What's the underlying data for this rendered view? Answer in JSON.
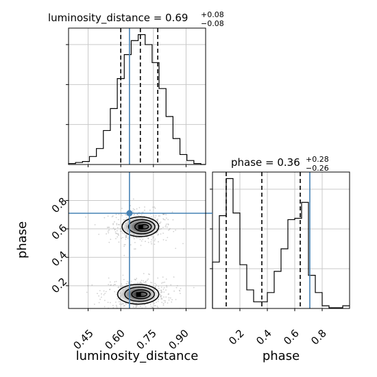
{
  "chart_data": {
    "type": "corner",
    "parameters": [
      "luminosity_distance",
      "phase"
    ],
    "truth_color": "#4682b4",
    "truths": {
      "luminosity_distance": 0.64,
      "phase": 0.71
    },
    "panels": [
      {
        "id": "hist_luminosity_distance",
        "type": "histogram-step",
        "xlim": [
          0.36,
          0.99
        ],
        "title": {
          "text": "luminosity_distance = 0.69",
          "plus": "+0.08",
          "minus": "−0.08"
        },
        "quantiles": [
          0.6,
          0.69,
          0.77
        ],
        "bin_edges": [
          0.36,
          0.392,
          0.424,
          0.456,
          0.488,
          0.52,
          0.552,
          0.584,
          0.616,
          0.648,
          0.68,
          0.712,
          0.744,
          0.776,
          0.808,
          0.84,
          0.872,
          0.904,
          0.936,
          0.968,
          0.99
        ],
        "counts": [
          0.5,
          1.0,
          1.5,
          4.0,
          8.0,
          17.0,
          28.0,
          43.0,
          55.0,
          62.0,
          65.0,
          60.0,
          51.0,
          38.0,
          24.0,
          13.0,
          5.0,
          2.0,
          0.5,
          0.0
        ]
      },
      {
        "id": "hist_phase",
        "type": "histogram-step",
        "xlim": [
          0.0,
          1.0
        ],
        "title": {
          "text": "phase = 0.36",
          "plus": "+0.28",
          "minus": "−0.26"
        },
        "xticks": [
          "0.2",
          "0.4",
          "0.6",
          "0.8"
        ],
        "xlabel": "phase",
        "quantiles": [
          0.1,
          0.36,
          0.64
        ],
        "bin_edges": [
          0.0,
          0.05,
          0.1,
          0.15,
          0.2,
          0.25,
          0.3,
          0.35,
          0.4,
          0.45,
          0.5,
          0.55,
          0.6,
          0.65,
          0.7,
          0.75,
          0.8,
          0.85,
          0.9,
          0.95,
          1.0
        ],
        "counts": [
          35,
          70,
          98,
          72,
          33,
          14,
          5,
          5,
          12,
          28,
          45,
          67,
          68,
          80,
          25,
          12,
          2,
          0.5,
          0.5,
          2
        ]
      },
      {
        "id": "scatter_phase_vs_luminosity_distance",
        "type": "2d-density",
        "xlim": [
          0.36,
          0.99
        ],
        "ylim": [
          0.04,
          1.0
        ],
        "xticks": [
          "0.45",
          "0.60",
          "0.75",
          "0.90"
        ],
        "yticks": [
          "0.2",
          "0.4",
          "0.6",
          "0.8"
        ],
        "xlabel": "luminosity_distance",
        "ylabel": "phase",
        "modes": [
          {
            "cx": 0.69,
            "cy": 0.615,
            "sx": 0.08,
            "sy": 0.085
          },
          {
            "cx": 0.68,
            "cy": 0.14,
            "sx": 0.09,
            "sy": 0.085
          }
        ]
      }
    ]
  }
}
